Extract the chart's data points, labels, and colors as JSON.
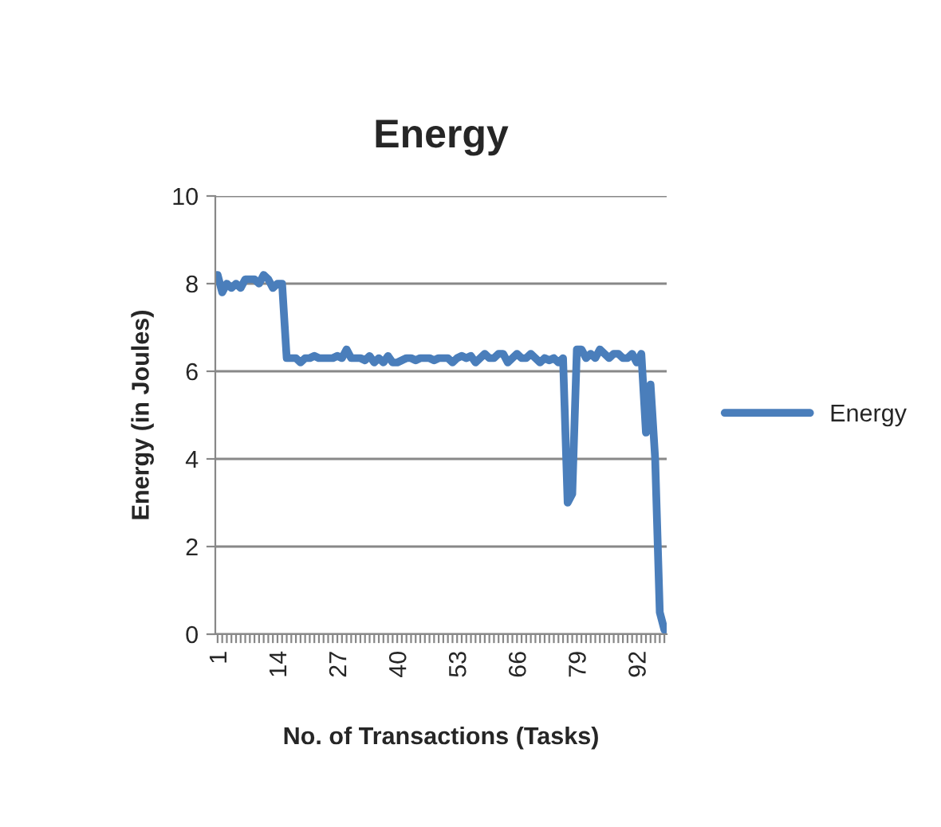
{
  "chart_data": {
    "type": "line",
    "title": "Energy",
    "xlabel": "No. of Transactions (Tasks)",
    "ylabel": "Energy (in Joules)",
    "categories": [
      "1",
      null,
      null,
      null,
      null,
      null,
      null,
      null,
      null,
      null,
      null,
      null,
      null,
      "14",
      null,
      null,
      null,
      null,
      null,
      null,
      null,
      null,
      null,
      null,
      null,
      null,
      "27",
      null,
      null,
      null,
      null,
      null,
      null,
      null,
      null,
      null,
      null,
      null,
      null,
      "40",
      null,
      null,
      null,
      null,
      null,
      null,
      null,
      null,
      null,
      null,
      null,
      null,
      "53",
      null,
      null,
      null,
      null,
      null,
      null,
      null,
      null,
      null,
      null,
      null,
      null,
      "66",
      null,
      null,
      null,
      null,
      null,
      null,
      null,
      null,
      null,
      null,
      null,
      null,
      "79",
      null,
      null,
      null,
      null,
      null,
      null,
      null,
      null,
      null,
      null,
      null,
      null,
      "92",
      null,
      null,
      null,
      null,
      null,
      null
    ],
    "series": [
      {
        "name": "Energy",
        "color": "#4a7ebb",
        "values": [
          8.2,
          7.8,
          8.0,
          7.9,
          8.0,
          7.9,
          8.1,
          8.1,
          8.1,
          8.0,
          8.2,
          8.1,
          7.9,
          8.0,
          8.0,
          6.3,
          6.3,
          6.3,
          6.2,
          6.3,
          6.3,
          6.35,
          6.3,
          6.3,
          6.3,
          6.3,
          6.35,
          6.3,
          6.5,
          6.3,
          6.3,
          6.3,
          6.25,
          6.35,
          6.2,
          6.3,
          6.2,
          6.35,
          6.2,
          6.2,
          6.25,
          6.3,
          6.3,
          6.25,
          6.3,
          6.3,
          6.3,
          6.25,
          6.3,
          6.3,
          6.3,
          6.2,
          6.3,
          6.35,
          6.3,
          6.35,
          6.2,
          6.3,
          6.4,
          6.3,
          6.3,
          6.4,
          6.4,
          6.2,
          6.3,
          6.4,
          6.3,
          6.3,
          6.4,
          6.3,
          6.2,
          6.3,
          6.25,
          6.3,
          6.2,
          6.3,
          3.0,
          3.2,
          6.5,
          6.5,
          6.3,
          6.4,
          6.3,
          6.5,
          6.4,
          6.3,
          6.4,
          6.4,
          6.3,
          6.3,
          6.4,
          6.2,
          6.4,
          4.6,
          5.7,
          4.0,
          0.5,
          0.1
        ]
      }
    ],
    "ylim": [
      0,
      10
    ],
    "yticks": [
      0,
      2,
      4,
      6,
      8,
      10
    ],
    "grid": "y",
    "legend": "right",
    "line_style": "solid",
    "marker": "none"
  }
}
